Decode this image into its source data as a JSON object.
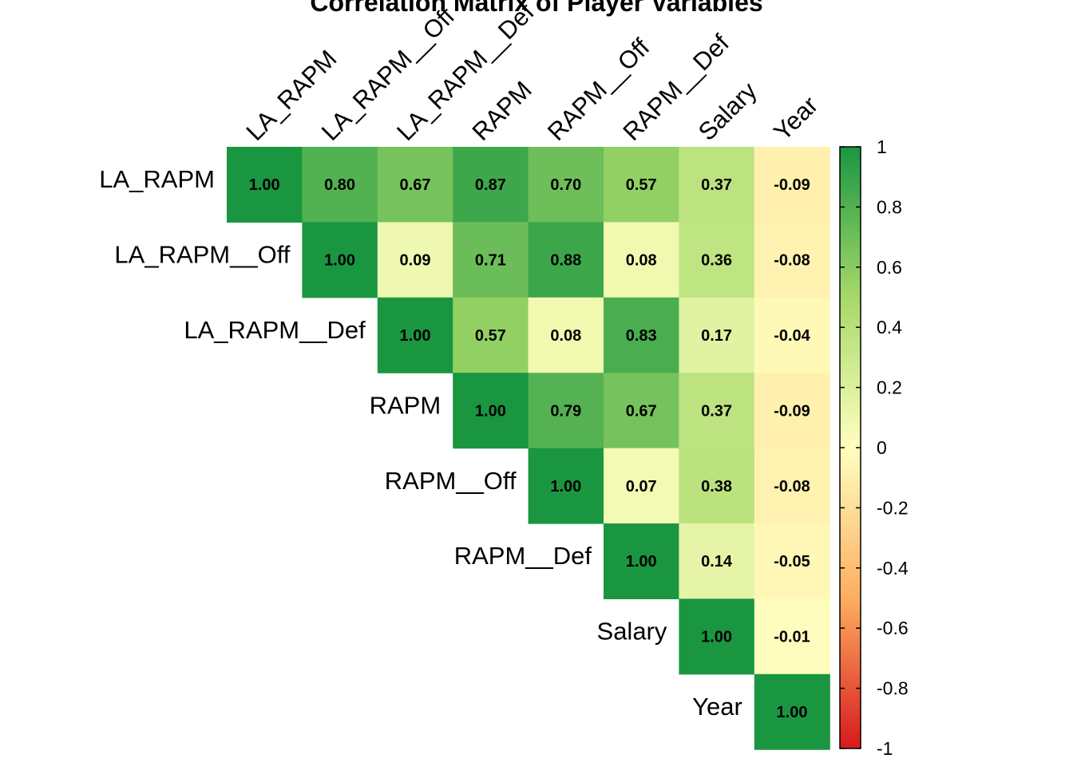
{
  "chart_data": {
    "type": "heatmap",
    "title": "Correlation Matrix of Player Variables",
    "variables": [
      "LA_RAPM",
      "LA_RAPM__Off",
      "LA_RAPM__Def",
      "RAPM",
      "RAPM__Off",
      "RAPM__Def",
      "Salary",
      "Year"
    ],
    "triangle": "upper",
    "matrix": [
      [
        1.0,
        0.8,
        0.67,
        0.87,
        0.7,
        0.57,
        0.37,
        -0.09
      ],
      [
        null,
        1.0,
        0.09,
        0.71,
        0.88,
        0.08,
        0.36,
        -0.08
      ],
      [
        null,
        null,
        1.0,
        0.57,
        0.08,
        0.83,
        0.17,
        -0.04
      ],
      [
        null,
        null,
        null,
        1.0,
        0.79,
        0.67,
        0.37,
        -0.09
      ],
      [
        null,
        null,
        null,
        null,
        1.0,
        0.07,
        0.38,
        -0.08
      ],
      [
        null,
        null,
        null,
        null,
        null,
        1.0,
        0.14,
        -0.05
      ],
      [
        null,
        null,
        null,
        null,
        null,
        null,
        1.0,
        -0.01
      ],
      [
        null,
        null,
        null,
        null,
        null,
        null,
        null,
        1.0
      ]
    ],
    "colorbar": {
      "range": [
        -1,
        1
      ],
      "ticks": [
        1,
        0.8,
        0.6,
        0.4,
        0.2,
        0,
        -0.2,
        -0.4,
        -0.6,
        -0.8,
        -1
      ],
      "tick_labels": [
        "1",
        "0.8",
        "0.6",
        "0.4",
        "0.2",
        "0",
        "-0.2",
        "-0.4",
        "-0.6",
        "-0.8",
        "-1"
      ],
      "colors": {
        "neg1": "#d7191c",
        "neg05": "#fdae61",
        "zero": "#ffffbf",
        "pos05": "#a6d96a",
        "pos1": "#1a9641"
      }
    }
  }
}
